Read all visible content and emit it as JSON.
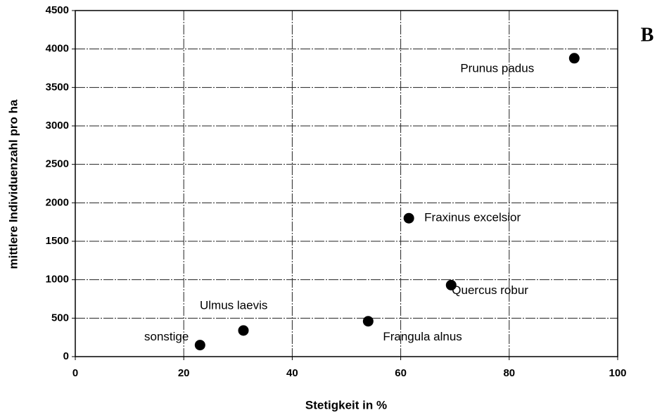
{
  "chart_data": {
    "type": "scatter",
    "xlabel": "Stetigkeit in %",
    "ylabel": "mittlere Individuenzahl pro  ha",
    "panel_label": "B",
    "x": [
      92,
      61.5,
      69.3,
      54,
      31,
      23
    ],
    "values": [
      3880,
      1800,
      930,
      460,
      340,
      150
    ],
    "point_labels": [
      "Prunus padus",
      "Fraxinus excelsior",
      "Quercus robur",
      "Frangula alnus",
      "Ulmus laevis",
      "sonstige"
    ],
    "color": "#000000",
    "xlim": [
      0,
      100
    ],
    "xticks": [
      0,
      20,
      40,
      60,
      80,
      100
    ],
    "ylim": [
      0,
      4500
    ],
    "yticks": [
      0,
      500,
      1000,
      1500,
      2000,
      2500,
      3000,
      3500,
      4000,
      4500
    ],
    "grid": true
  }
}
